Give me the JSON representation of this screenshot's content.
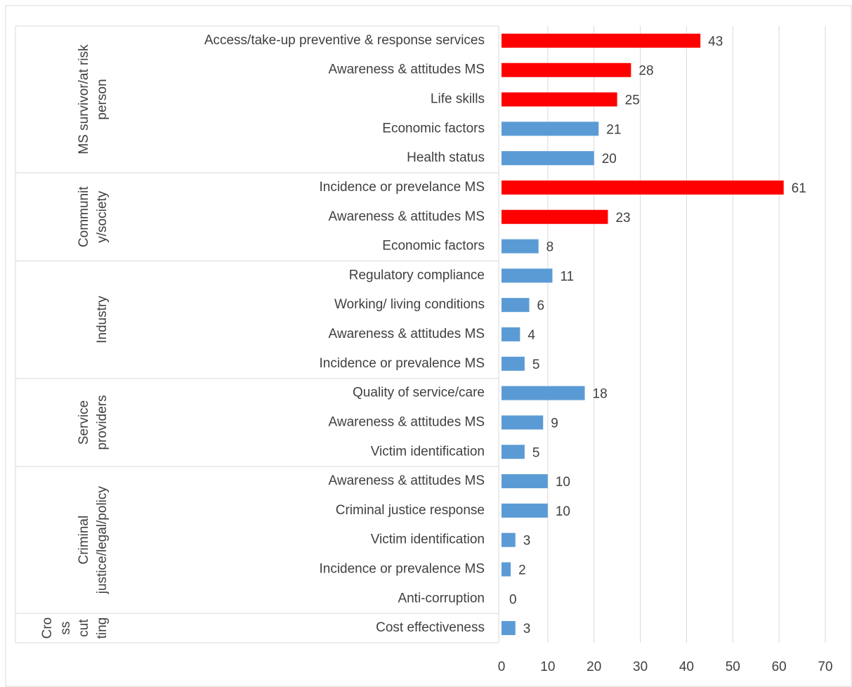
{
  "chart_data": {
    "type": "bar",
    "orientation": "horizontal",
    "categories": [
      "Access/take-up preventive & response services",
      "Awareness & attitudes MS",
      "Life skills",
      "Economic factors",
      "Health status",
      "Incidence or prevelance MS",
      "Awareness & attitudes MS",
      "Economic factors",
      "Regulatory compliance",
      "Working/ living conditions",
      "Awareness & attitudes MS",
      "Incidence or prevalence MS",
      "Quality of service/care",
      "Awareness & attitudes MS",
      "Victim identification",
      "Awareness & attitudes MS",
      "Criminal justice response",
      "Victim identification",
      "Incidence or prevalence MS",
      "Anti-corruption",
      "Cost effectiveness"
    ],
    "values": [
      43,
      28,
      25,
      21,
      20,
      61,
      23,
      8,
      11,
      6,
      4,
      5,
      18,
      9,
      5,
      10,
      10,
      3,
      2,
      0,
      3
    ],
    "colors": [
      "#ff0000",
      "#ff0000",
      "#ff0000",
      "#5b9bd5",
      "#5b9bd5",
      "#ff0000",
      "#ff0000",
      "#5b9bd5",
      "#5b9bd5",
      "#5b9bd5",
      "#5b9bd5",
      "#5b9bd5",
      "#5b9bd5",
      "#5b9bd5",
      "#5b9bd5",
      "#5b9bd5",
      "#5b9bd5",
      "#5b9bd5",
      "#5b9bd5",
      "#5b9bd5",
      "#5b9bd5"
    ],
    "groups": [
      {
        "lines": [
          "MS survivor/at risk",
          "person"
        ],
        "count": 5
      },
      {
        "lines": [
          "Communit",
          "y/society"
        ],
        "count": 3
      },
      {
        "lines": [
          "Industry"
        ],
        "count": 4
      },
      {
        "lines": [
          "Service",
          "providers"
        ],
        "count": 3
      },
      {
        "lines": [
          "Criminal",
          "justice/legal/policy"
        ],
        "count": 5
      },
      {
        "lines": [
          "Cro",
          "ss",
          "cut",
          "ting"
        ],
        "count": 1
      }
    ],
    "xlim": [
      0,
      70
    ],
    "xticks": [
      0,
      10,
      20,
      30,
      40,
      50,
      60,
      70
    ],
    "grid": true
  }
}
